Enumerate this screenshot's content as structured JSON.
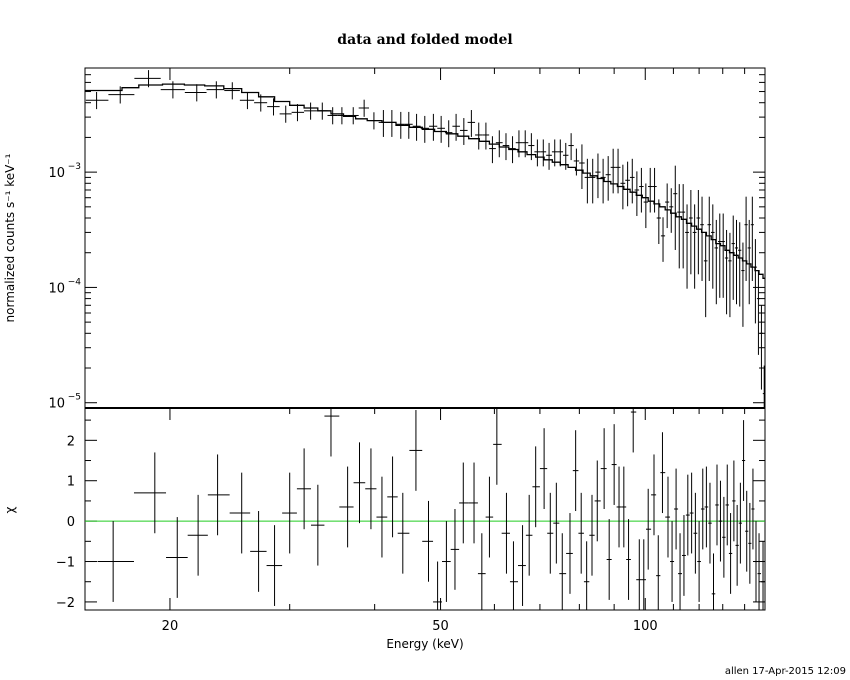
{
  "title": "data and folded model",
  "footer": "allen 17-Apr-2015 12:09",
  "chart_data": [
    {
      "type": "scatter",
      "panel": "top",
      "ylabel": "normalized counts s⁻¹ keV⁻¹",
      "yscale": "log",
      "ylim": [
        9e-06,
        0.008
      ],
      "xscale": "log",
      "xlim": [
        15,
        150
      ],
      "y_ticks": [
        {
          "value": 1e-05,
          "base": "10",
          "exp": "−5"
        },
        {
          "value": 0.0001,
          "base": "10",
          "exp": "−4"
        },
        {
          "value": 0.001,
          "base": "10",
          "exp": "−3"
        }
      ],
      "series": [
        {
          "points": [
            [
              15.6,
              0.0042
            ],
            [
              16.9,
              0.0047
            ],
            [
              18.6,
              0.0065
            ],
            [
              20.2,
              0.0052
            ],
            [
              21.9,
              0.0049
            ],
            [
              23.4,
              0.0052
            ],
            [
              24.7,
              0.0051
            ],
            [
              26.0,
              0.0042
            ],
            [
              27.2,
              0.004
            ],
            [
              28.4,
              0.0037
            ],
            [
              29.6,
              0.0032
            ],
            [
              30.8,
              0.0033
            ],
            [
              32.2,
              0.0034
            ],
            [
              33.5,
              0.0034
            ],
            [
              34.7,
              0.0031
            ],
            [
              35.8,
              0.0031
            ],
            [
              37.2,
              0.0031
            ],
            [
              38.6,
              0.0036
            ],
            [
              39.9,
              0.0028
            ],
            [
              41.2,
              0.0027
            ],
            [
              42.4,
              0.0027
            ],
            [
              43.7,
              0.0026
            ],
            [
              44.9,
              0.0026
            ],
            [
              46.1,
              0.0025
            ],
            [
              47.4,
              0.0024
            ],
            [
              48.8,
              0.0025
            ],
            [
              50.1,
              0.0024
            ],
            [
              51.4,
              0.0022
            ],
            [
              52.7,
              0.0025
            ],
            [
              54.1,
              0.0023
            ],
            [
              55.5,
              0.0027
            ],
            [
              56.9,
              0.0021
            ],
            [
              58.3,
              0.0021
            ],
            [
              59.6,
              0.0016
            ],
            [
              61.0,
              0.0018
            ],
            [
              62.4,
              0.0017
            ],
            [
              63.8,
              0.0016
            ],
            [
              65.2,
              0.0018
            ],
            [
              66.6,
              0.0018
            ],
            [
              68.0,
              0.0017
            ],
            [
              69.4,
              0.0015
            ],
            [
              70.8,
              0.0015
            ],
            [
              72.2,
              0.0014
            ],
            [
              73.6,
              0.0015
            ],
            [
              75.0,
              0.0015
            ],
            [
              76.4,
              0.0014
            ],
            [
              77.8,
              0.0017
            ],
            [
              79.2,
              0.00125
            ],
            [
              80.7,
              0.0012
            ],
            [
              82.2,
              0.0009
            ],
            [
              83.7,
              0.0009
            ],
            [
              85.2,
              0.001
            ],
            [
              86.7,
              0.0009
            ],
            [
              88.2,
              0.00095
            ],
            [
              89.7,
              0.0011
            ],
            [
              91.2,
              0.0011
            ],
            [
              92.7,
              0.0008
            ],
            [
              94.2,
              0.00085
            ],
            [
              95.7,
              0.0009
            ],
            [
              97.2,
              0.0007
            ],
            [
              98.7,
              0.00075
            ],
            [
              100.2,
              0.00055
            ],
            [
              101.7,
              0.00075
            ],
            [
              103.2,
              0.00075
            ],
            [
              104.7,
              0.0004
            ],
            [
              106.2,
              0.00028
            ],
            [
              107.7,
              0.00055
            ],
            [
              109.2,
              0.0005
            ],
            [
              110.7,
              0.00065
            ],
            [
              112.2,
              0.00045
            ],
            [
              113.7,
              0.00045
            ],
            [
              115.2,
              0.0003
            ],
            [
              116.7,
              0.0004
            ],
            [
              118.2,
              0.0003
            ],
            [
              119.7,
              0.0004
            ],
            [
              121.2,
              0.00035
            ],
            [
              122.7,
              0.00017
            ],
            [
              124.2,
              0.00035
            ],
            [
              125.7,
              0.0003
            ],
            [
              127.2,
              0.00022
            ],
            [
              128.7,
              0.00025
            ],
            [
              130.2,
              0.00025
            ],
            [
              131.7,
              0.00018
            ],
            [
              133.2,
              0.00017
            ],
            [
              134.7,
              0.00024
            ],
            [
              136.2,
              0.00022
            ],
            [
              137.7,
              0.00021
            ],
            [
              139.2,
              0.00014
            ],
            [
              140.7,
              0.00035
            ],
            [
              142.2,
              0.00022
            ],
            [
              143.7,
              0.00035
            ],
            [
              145.2,
              0.00015
            ],
            [
              146.7,
              8e-05
            ],
            [
              148.2,
              4e-05
            ],
            [
              149.6,
              1.2e-05
            ]
          ]
        },
        {
          "model_steps": [
            [
              15.0,
              0.0051
            ],
            [
              17.0,
              0.0054
            ],
            [
              18.0,
              0.0057
            ],
            [
              19.5,
              0.0058
            ],
            [
              21.0,
              0.0057
            ],
            [
              22.5,
              0.0056
            ],
            [
              24.0,
              0.0053
            ],
            [
              25.5,
              0.0049
            ],
            [
              27.0,
              0.0045
            ],
            [
              28.5,
              0.0041
            ],
            [
              30.0,
              0.0038
            ],
            [
              31.5,
              0.0036
            ],
            [
              33.0,
              0.0034
            ],
            [
              34.5,
              0.0032
            ],
            [
              36.0,
              0.00305
            ],
            [
              37.5,
              0.0029
            ],
            [
              39.0,
              0.0028
            ],
            [
              41.0,
              0.0027
            ],
            [
              43.0,
              0.00255
            ],
            [
              45.0,
              0.00245
            ],
            [
              47.0,
              0.00235
            ],
            [
              49.0,
              0.00225
            ],
            [
              51.0,
              0.00215
            ],
            [
              53.0,
              0.00205
            ],
            [
              55.0,
              0.00195
            ],
            [
              57.0,
              0.00185
            ],
            [
              59.0,
              0.00175
            ],
            [
              61.0,
              0.00165
            ],
            [
              63.0,
              0.00157
            ],
            [
              65.0,
              0.0015
            ],
            [
              67.0,
              0.00142
            ],
            [
              69.0,
              0.00135
            ],
            [
              71.0,
              0.00128
            ],
            [
              73.0,
              0.00122
            ],
            [
              75.0,
              0.00116
            ],
            [
              77.0,
              0.0011
            ],
            [
              79.0,
              0.00104
            ],
            [
              81.0,
              0.00098
            ],
            [
              83.0,
              0.00093
            ],
            [
              85.0,
              0.00088
            ],
            [
              87.0,
              0.00083
            ],
            [
              89.0,
              0.00079
            ],
            [
              91.0,
              0.00075
            ],
            [
              93.0,
              0.00071
            ],
            [
              95.0,
              0.00067
            ],
            [
              97.0,
              0.00063
            ],
            [
              99.0,
              0.0006
            ],
            [
              101.0,
              0.00056
            ],
            [
              103.0,
              0.00053
            ],
            [
              105.0,
              0.0005
            ],
            [
              107.0,
              0.00047
            ],
            [
              109.0,
              0.00044
            ],
            [
              111.0,
              0.00041
            ],
            [
              113.0,
              0.00039
            ],
            [
              115.0,
              0.00036
            ],
            [
              117.0,
              0.00034
            ],
            [
              119.0,
              0.00032
            ],
            [
              121.0,
              0.0003
            ],
            [
              123.0,
              0.00028
            ],
            [
              125.0,
              0.00026
            ],
            [
              127.0,
              0.00024
            ],
            [
              129.0,
              0.00023
            ],
            [
              131.0,
              0.00021
            ],
            [
              133.0,
              0.0002
            ],
            [
              135.0,
              0.00019
            ],
            [
              137.0,
              0.00018
            ],
            [
              139.0,
              0.00017
            ],
            [
              141.0,
              0.00016
            ],
            [
              143.0,
              0.00015
            ],
            [
              145.0,
              0.00014
            ],
            [
              147.0,
              0.00013
            ],
            [
              149.0,
              0.00012
            ],
            [
              150.0,
              0.00012
            ]
          ]
        }
      ]
    },
    {
      "type": "scatter",
      "panel": "bottom",
      "xlabel": "Energy (keV)",
      "ylabel": "χ",
      "xscale": "log",
      "xlim": [
        15,
        150
      ],
      "ylim": [
        -2.2,
        2.8
      ],
      "x_ticks": [
        20,
        50,
        100
      ],
      "y_ticks": [
        -2,
        -1,
        0,
        1,
        2
      ],
      "reference_line": {
        "y": 0,
        "color": "#22cc22"
      },
      "series": [
        {
          "points": [
            [
              16.5,
              -1.0
            ],
            [
              19.0,
              0.7
            ],
            [
              20.5,
              -0.9
            ],
            [
              22.0,
              -0.35
            ],
            [
              23.5,
              0.65
            ],
            [
              25.5,
              0.2
            ],
            [
              27.0,
              -0.75
            ],
            [
              28.5,
              -1.1
            ],
            [
              30.0,
              0.2
            ],
            [
              31.5,
              0.8
            ],
            [
              33.0,
              -0.1
            ],
            [
              34.5,
              2.6
            ],
            [
              36.5,
              0.35
            ],
            [
              38.0,
              0.95
            ],
            [
              39.5,
              0.8
            ],
            [
              41.0,
              0.1
            ],
            [
              42.5,
              0.6
            ],
            [
              44.0,
              -0.3
            ],
            [
              46.0,
              1.75
            ],
            [
              48.0,
              -0.5
            ],
            [
              49.5,
              -2.0
            ],
            [
              51.0,
              -1.0
            ],
            [
              52.5,
              -0.7
            ],
            [
              54.0,
              0.45
            ],
            [
              56.0,
              0.45
            ],
            [
              57.5,
              -1.3
            ],
            [
              59.0,
              0.1
            ],
            [
              60.5,
              1.9
            ],
            [
              62.5,
              -0.3
            ],
            [
              64.0,
              -1.5
            ],
            [
              66.0,
              -1.1
            ],
            [
              67.5,
              -0.35
            ],
            [
              69.0,
              0.85
            ],
            [
              71.0,
              1.3
            ],
            [
              72.5,
              -0.3
            ],
            [
              74.0,
              -0.05
            ],
            [
              75.5,
              -1.3
            ],
            [
              77.5,
              -0.8
            ],
            [
              79.0,
              1.25
            ],
            [
              80.5,
              -0.3
            ],
            [
              82.0,
              -1.5
            ],
            [
              83.5,
              -0.35
            ],
            [
              85.0,
              0.5
            ],
            [
              87.0,
              1.3
            ],
            [
              88.5,
              -0.95
            ],
            [
              90.0,
              1.4
            ],
            [
              91.5,
              0.35
            ],
            [
              93.0,
              0.35
            ],
            [
              94.5,
              -0.95
            ],
            [
              96.0,
              2.7
            ],
            [
              98.0,
              -1.45
            ],
            [
              99.5,
              -1.45
            ],
            [
              101.0,
              -0.2
            ],
            [
              103.0,
              0.65
            ],
            [
              104.5,
              -1.35
            ],
            [
              106.0,
              1.2
            ],
            [
              108.0,
              0.1
            ],
            [
              109.5,
              -1.0
            ],
            [
              111.0,
              0.3
            ],
            [
              112.5,
              -1.3
            ],
            [
              114.0,
              -0.85
            ],
            [
              115.5,
              0.15
            ],
            [
              117.0,
              0.2
            ],
            [
              118.5,
              -0.3
            ],
            [
              120.0,
              -1.0
            ],
            [
              121.5,
              0.3
            ],
            [
              123.0,
              0.35
            ],
            [
              124.5,
              -0.05
            ],
            [
              126.0,
              -1.8
            ],
            [
              127.5,
              0.4
            ],
            [
              129.0,
              0.0
            ],
            [
              130.5,
              -0.4
            ],
            [
              132.0,
              0.4
            ],
            [
              133.5,
              -0.8
            ],
            [
              135.0,
              0.5
            ],
            [
              136.5,
              -0.6
            ],
            [
              138.0,
              -0.05
            ],
            [
              139.5,
              1.5
            ],
            [
              141.0,
              -0.25
            ],
            [
              142.5,
              -0.55
            ],
            [
              144.0,
              0.3
            ],
            [
              145.5,
              -1.0
            ],
            [
              147.0,
              -1.3
            ],
            [
              149.0,
              -1.5
            ]
          ]
        }
      ]
    }
  ]
}
